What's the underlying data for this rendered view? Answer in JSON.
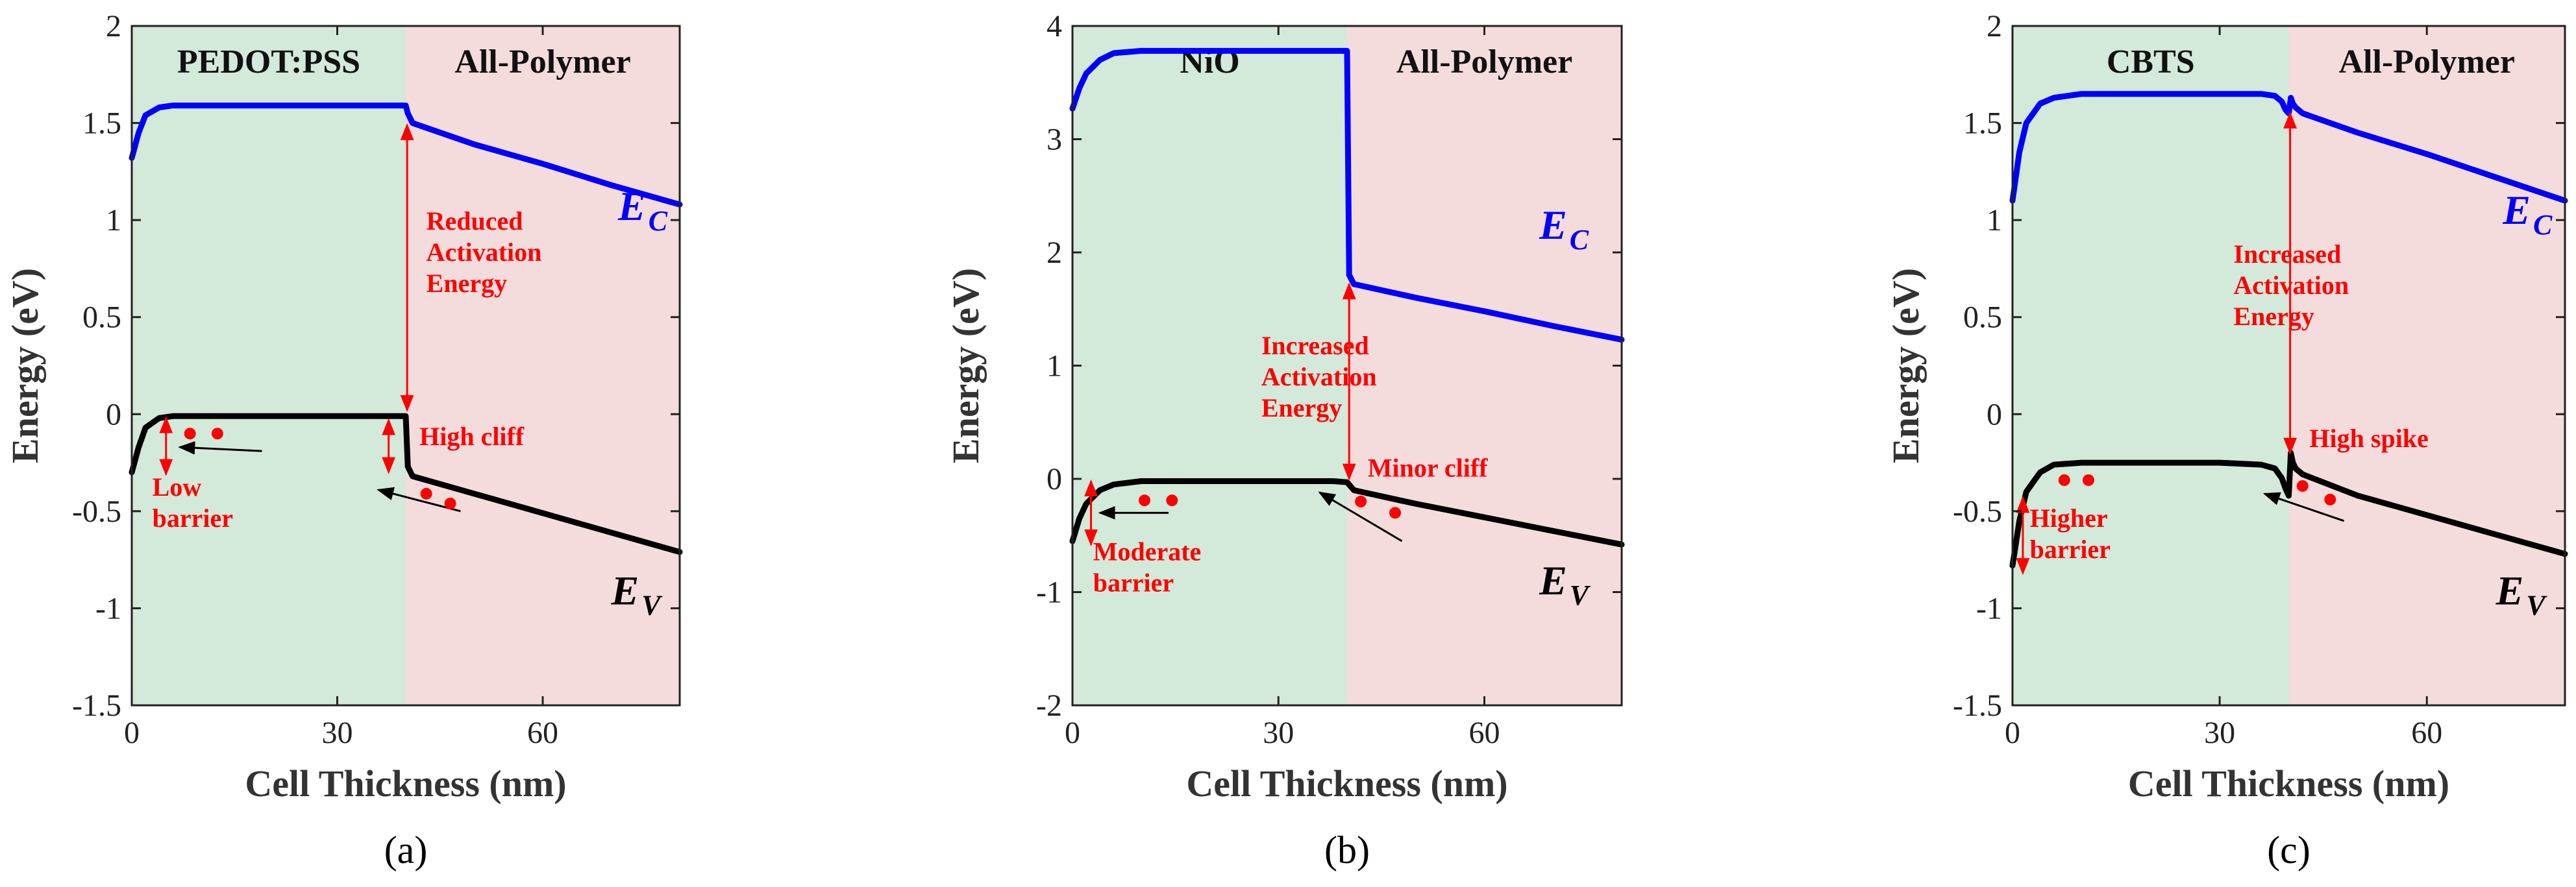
{
  "chart_data": [
    {
      "type": "line",
      "caption": "(a)",
      "ylabel": "Energy (eV)",
      "xlabel": "Cell Thickness (nm)",
      "xlim": [
        0,
        80
      ],
      "ylim": [
        -1.5,
        2
      ],
      "xticks": [
        0,
        30,
        60
      ],
      "yticks": [
        2,
        1.5,
        1,
        0.5,
        0,
        -0.5,
        -1,
        -1.5
      ],
      "ytick_labels": [
        "2",
        "1.5",
        "1",
        "0.5",
        "0",
        "-0.5",
        "-1",
        "-1.5"
      ],
      "interface_x": 40,
      "regions": [
        {
          "label": "PEDOT:PSS",
          "from": 0,
          "to": 40,
          "color": "#d3e9da"
        },
        {
          "label": "All-Polymer",
          "from": 40,
          "to": 80,
          "color": "#f5dcdc"
        }
      ],
      "series": [
        {
          "name": "E_C",
          "color": "#0000ff",
          "x": [
            0,
            1,
            2,
            4,
            6,
            10,
            20,
            30,
            38,
            40,
            40.3,
            41,
            50,
            60,
            70,
            80
          ],
          "y": [
            1.32,
            1.45,
            1.54,
            1.58,
            1.59,
            1.59,
            1.59,
            1.59,
            1.59,
            1.59,
            1.55,
            1.5,
            1.39,
            1.29,
            1.18,
            1.08
          ]
        },
        {
          "name": "E_V",
          "color": "#000000",
          "x": [
            0,
            1,
            2,
            4,
            6,
            10,
            20,
            30,
            38,
            40,
            40.3,
            41,
            50,
            60,
            70,
            80
          ],
          "y": [
            -0.3,
            -0.17,
            -0.07,
            -0.02,
            -0.01,
            -0.01,
            -0.01,
            -0.01,
            -0.01,
            -0.01,
            -0.27,
            -0.32,
            -0.41,
            -0.51,
            -0.61,
            -0.71
          ]
        }
      ],
      "band_labels": [
        {
          "main": "E",
          "sub": "C",
          "x": 71,
          "y": 1.0,
          "color": "#0000ff"
        },
        {
          "main": "E",
          "sub": "V",
          "x": 70,
          "y": -0.98,
          "color": "#000000"
        }
      ],
      "annotations": [
        {
          "lines": [
            "Reduced",
            "Activation",
            "Energy"
          ],
          "x": 43,
          "y": 0.95
        },
        {
          "lines": [
            "High cliff"
          ],
          "x": 42,
          "y": -0.16
        },
        {
          "lines": [
            "Low",
            "barrier"
          ],
          "x": 3,
          "y": -0.42
        }
      ],
      "arrows": [
        {
          "kind": "double",
          "x1": 40.2,
          "y1": 1.49,
          "x2": 40.2,
          "y2": 0.02
        },
        {
          "kind": "double",
          "x1": 37.5,
          "y1": -0.03,
          "x2": 37.5,
          "y2": -0.3
        },
        {
          "kind": "double",
          "x1": 5,
          "y1": -0.02,
          "x2": 5,
          "y2": -0.31
        },
        {
          "kind": "single",
          "x1": 19,
          "y1": -0.19,
          "x2": 7,
          "y2": -0.17
        },
        {
          "kind": "single",
          "x1": 48,
          "y1": -0.5,
          "x2": 36,
          "y2": -0.39
        }
      ],
      "holes": [
        [
          8.5,
          -0.1
        ],
        [
          12.5,
          -0.1
        ],
        [
          43,
          -0.41
        ],
        [
          46.5,
          -0.46
        ]
      ]
    },
    {
      "type": "line",
      "caption": "(b)",
      "ylabel": "Energy (eV)",
      "xlabel": "Cell Thickness (nm)",
      "xlim": [
        0,
        80
      ],
      "ylim": [
        -2,
        4
      ],
      "xticks": [
        0,
        30,
        60
      ],
      "yticks": [
        4,
        3,
        2,
        1,
        0,
        -1,
        -2
      ],
      "ytick_labels": [
        "4",
        "3",
        "2",
        "1",
        "0",
        "-1",
        "-2"
      ],
      "interface_x": 40,
      "regions": [
        {
          "label": "NiO",
          "from": 0,
          "to": 40,
          "color": "#d3e9da"
        },
        {
          "label": "All-Polymer",
          "from": 40,
          "to": 80,
          "color": "#f5dcdc"
        }
      ],
      "series": [
        {
          "name": "E_C",
          "color": "#0000ff",
          "x": [
            0,
            1,
            2,
            4,
            6,
            10,
            20,
            30,
            38,
            40,
            40.3,
            41,
            50,
            60,
            70,
            80
          ],
          "y": [
            3.27,
            3.45,
            3.58,
            3.7,
            3.76,
            3.78,
            3.78,
            3.78,
            3.78,
            3.78,
            1.8,
            1.72,
            1.6,
            1.48,
            1.35,
            1.23
          ]
        },
        {
          "name": "E_V",
          "color": "#000000",
          "x": [
            0,
            1,
            2,
            4,
            6,
            10,
            20,
            30,
            38,
            40,
            41,
            50,
            60,
            70,
            80
          ],
          "y": [
            -0.55,
            -0.35,
            -0.22,
            -0.1,
            -0.05,
            -0.02,
            -0.02,
            -0.02,
            -0.02,
            -0.03,
            -0.1,
            -0.22,
            -0.34,
            -0.46,
            -0.58
          ]
        }
      ],
      "band_labels": [
        {
          "main": "E",
          "sub": "C",
          "x": 68,
          "y": 2.12,
          "color": "#0000ff"
        },
        {
          "main": "E",
          "sub": "V",
          "x": 68,
          "y": -1.02,
          "color": "#000000"
        }
      ],
      "annotations": [
        {
          "lines": [
            "Increased",
            "Activation",
            "Energy"
          ],
          "x": 27.5,
          "y": 1.1
        },
        {
          "lines": [
            "Minor cliff"
          ],
          "x": 43,
          "y": 0.02
        },
        {
          "lines": [
            "Moderate",
            "barrier"
          ],
          "x": 3,
          "y": -0.72
        }
      ],
      "arrows": [
        {
          "kind": "double",
          "x1": 40.3,
          "y1": 1.72,
          "x2": 40.3,
          "y2": 0.0
        },
        {
          "kind": "double",
          "x1": 2.7,
          "y1": -0.02,
          "x2": 2.7,
          "y2": -0.58
        },
        {
          "kind": "single",
          "x1": 14,
          "y1": -0.3,
          "x2": 4,
          "y2": -0.3
        },
        {
          "kind": "single",
          "x1": 48,
          "y1": -0.55,
          "x2": 36,
          "y2": -0.12
        }
      ],
      "holes": [
        [
          10.5,
          -0.19
        ],
        [
          14.5,
          -0.19
        ],
        [
          42,
          -0.2
        ],
        [
          47,
          -0.3
        ]
      ]
    },
    {
      "type": "line",
      "caption": "(c)",
      "ylabel": "Energy (eV)",
      "xlabel": "Cell Thickness (nm)",
      "xlim": [
        0,
        80
      ],
      "ylim": [
        -1.5,
        2
      ],
      "xticks": [
        0,
        30,
        60
      ],
      "yticks": [
        2,
        1.5,
        1,
        0.5,
        0,
        -0.5,
        -1,
        -1.5
      ],
      "ytick_labels": [
        "2",
        "1.5",
        "1",
        "0.5",
        "0",
        "-0.5",
        "-1",
        "-1.5"
      ],
      "interface_x": 40,
      "regions": [
        {
          "label": "CBTS",
          "from": 0,
          "to": 40,
          "color": "#d3e9da"
        },
        {
          "label": "All-Polymer",
          "from": 40,
          "to": 80,
          "color": "#f5dcdc"
        }
      ],
      "series": [
        {
          "name": "E_C",
          "color": "#0000ff",
          "x": [
            0,
            1,
            2,
            4,
            6,
            10,
            20,
            30,
            36,
            38,
            39,
            39.5,
            40,
            40.3,
            40.6,
            41,
            42,
            50,
            60,
            70,
            80
          ],
          "y": [
            1.1,
            1.35,
            1.5,
            1.6,
            1.63,
            1.65,
            1.65,
            1.65,
            1.65,
            1.64,
            1.61,
            1.57,
            1.55,
            1.63,
            1.6,
            1.58,
            1.55,
            1.45,
            1.34,
            1.22,
            1.1
          ]
        },
        {
          "name": "E_V",
          "color": "#000000",
          "x": [
            0,
            1,
            2,
            4,
            6,
            10,
            20,
            30,
            36,
            38,
            39,
            39.5,
            40,
            40.3,
            40.6,
            41,
            42,
            50,
            60,
            70,
            80
          ],
          "y": [
            -0.78,
            -0.55,
            -0.4,
            -0.3,
            -0.26,
            -0.25,
            -0.25,
            -0.25,
            -0.26,
            -0.28,
            -0.33,
            -0.38,
            -0.42,
            -0.2,
            -0.25,
            -0.28,
            -0.31,
            -0.42,
            -0.52,
            -0.62,
            -0.72
          ]
        }
      ],
      "band_labels": [
        {
          "main": "E",
          "sub": "C",
          "x": 71,
          "y": 0.98,
          "color": "#0000ff"
        },
        {
          "main": "E",
          "sub": "V",
          "x": 70,
          "y": -0.98,
          "color": "#000000"
        }
      ],
      "annotations": [
        {
          "lines": [
            "Increased",
            "Activation",
            "Energy"
          ],
          "x": 32,
          "y": 0.78
        },
        {
          "lines": [
            "High spike"
          ],
          "x": 43,
          "y": -0.17
        },
        {
          "lines": [
            "Higher",
            "barrier"
          ],
          "x": 2.5,
          "y": -0.58
        }
      ],
      "arrows": [
        {
          "kind": "double",
          "x1": 40.2,
          "y1": 1.55,
          "x2": 40.2,
          "y2": -0.2
        },
        {
          "kind": "double",
          "x1": 1.5,
          "y1": -0.43,
          "x2": 1.5,
          "y2": -0.82
        },
        {
          "kind": "single",
          "x1": 48,
          "y1": -0.55,
          "x2": 36.5,
          "y2": -0.41
        }
      ],
      "holes": [
        [
          7.5,
          -0.34
        ],
        [
          11,
          -0.34
        ],
        [
          42,
          -0.37
        ],
        [
          46,
          -0.44
        ]
      ]
    }
  ]
}
